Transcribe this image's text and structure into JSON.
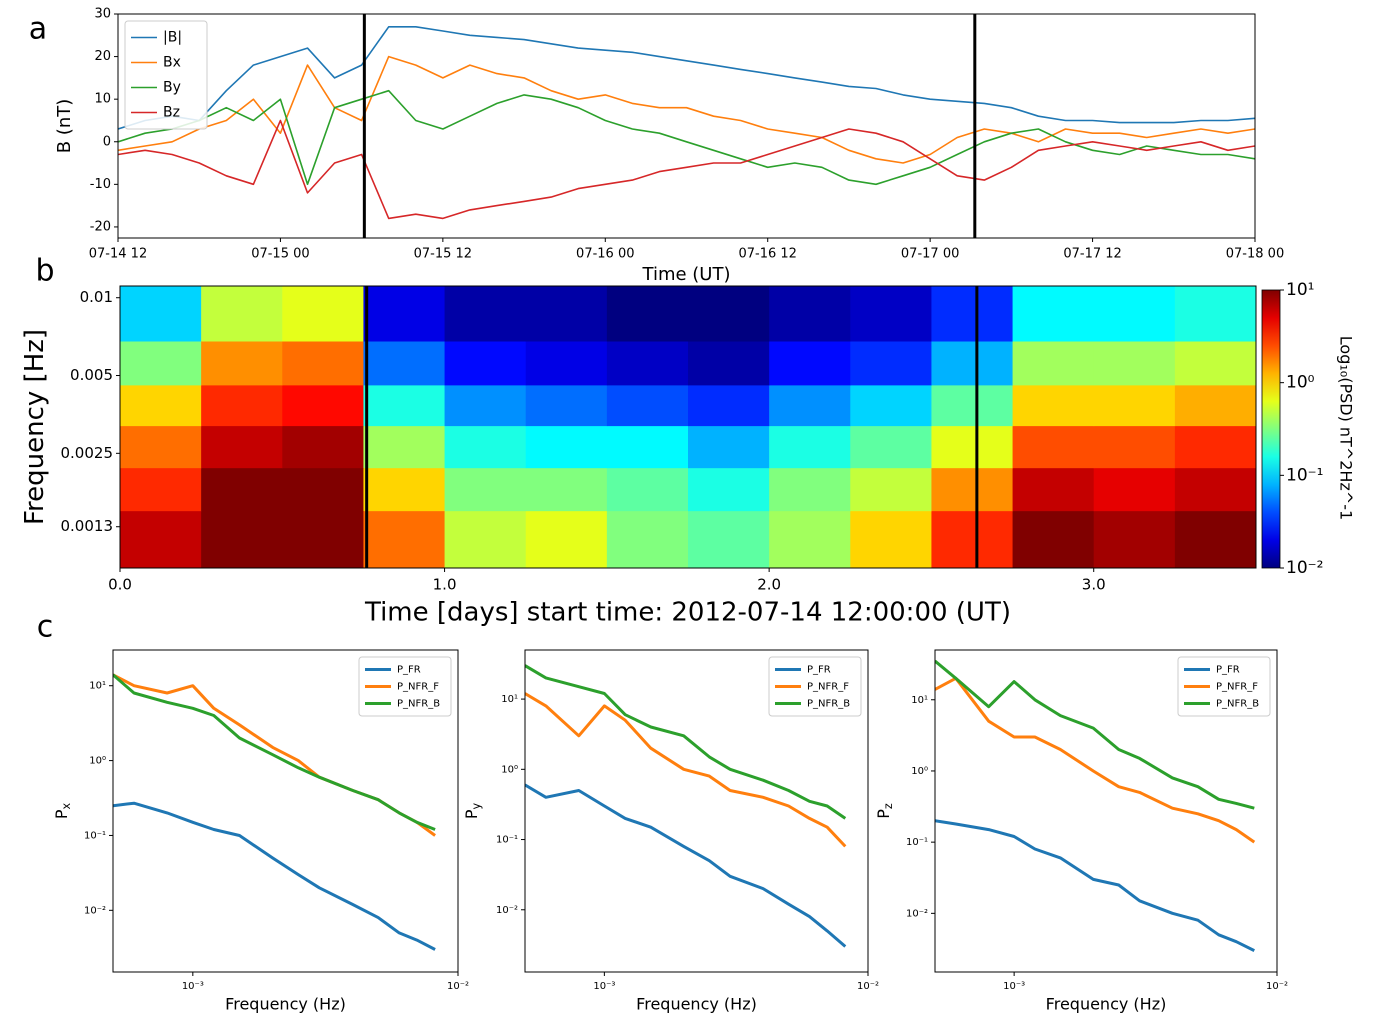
{
  "chart_data": [
    {
      "type": "line",
      "panel_label": "a",
      "xlabel": "Time (UT)",
      "ylabel": "B (nT)",
      "x": [
        0,
        2,
        4,
        6,
        8,
        10,
        12,
        14,
        16,
        18,
        20,
        22,
        24,
        26,
        28,
        30,
        32,
        34,
        36,
        38,
        40,
        42,
        44,
        46,
        48,
        50,
        52,
        54,
        56,
        58,
        60,
        62,
        64,
        66,
        68,
        70,
        72,
        74,
        76,
        78,
        80,
        82,
        84
      ],
      "xlim": [
        0,
        84
      ],
      "xticks": [
        {
          "value": 0,
          "label": "07-14 12"
        },
        {
          "value": 12,
          "label": "07-15 00"
        },
        {
          "value": 24,
          "label": "07-15 12"
        },
        {
          "value": 36,
          "label": "07-16 00"
        },
        {
          "value": 48,
          "label": "07-16 12"
        },
        {
          "value": 60,
          "label": "07-17 00"
        },
        {
          "value": 72,
          "label": "07-17 12"
        },
        {
          "value": 84,
          "label": "07-18 00"
        }
      ],
      "ylim": [
        -22.6,
        30
      ],
      "yticks": [
        -20,
        -10,
        0,
        10,
        20,
        30
      ],
      "vlines": [
        18.2,
        63.3
      ],
      "legend": "upper left",
      "series": [
        {
          "name": "|B|",
          "color": "#1f77b4",
          "values": [
            3,
            5,
            6,
            5,
            12,
            18,
            20,
            22,
            15,
            18,
            27,
            27,
            26,
            25,
            24.5,
            24,
            23,
            22,
            21.5,
            21,
            20,
            19,
            18,
            17,
            16,
            15,
            14,
            13,
            12.5,
            11,
            10,
            9.5,
            9,
            8,
            6,
            5,
            5,
            4.5,
            4.5,
            4.5,
            5,
            5,
            5.5
          ]
        },
        {
          "name": "Bx",
          "color": "#ff7f0e",
          "values": [
            -2,
            -1,
            0,
            3,
            5,
            10,
            2,
            18,
            8,
            5,
            20,
            18,
            15,
            18,
            16,
            15,
            12,
            10,
            11,
            9,
            8,
            8,
            6,
            5,
            3,
            2,
            1,
            -2,
            -4,
            -5,
            -3,
            1,
            3,
            2,
            0,
            3,
            2,
            2,
            1,
            2,
            3,
            2,
            3
          ]
        },
        {
          "name": "By",
          "color": "#2ca02c",
          "values": [
            0,
            2,
            3,
            5,
            8,
            5,
            10,
            -10,
            8,
            10,
            12,
            5,
            3,
            6,
            9,
            11,
            10,
            8,
            5,
            3,
            2,
            0,
            -2,
            -4,
            -6,
            -5,
            -6,
            -9,
            -10,
            -8,
            -6,
            -3,
            0,
            2,
            3,
            0,
            -2,
            -3,
            -1,
            -2,
            -3,
            -3,
            -4
          ]
        },
        {
          "name": "Bz",
          "color": "#d62728",
          "values": [
            -3,
            -2,
            -3,
            -5,
            -8,
            -10,
            5,
            -12,
            -5,
            -3,
            -18,
            -17,
            -18,
            -16,
            -15,
            -14,
            -13,
            -11,
            -10,
            -9,
            -7,
            -6,
            -5,
            -5,
            -3,
            -1,
            1,
            3,
            2,
            0,
            -4,
            -8,
            -9,
            -6,
            -2,
            -1,
            0,
            -1,
            -2,
            -1,
            0,
            -2,
            -1
          ]
        }
      ]
    },
    {
      "type": "heatmap",
      "panel_label": "b",
      "xlabel": "Time [days] start time: 2012-07-14 12:00:00 (UT)",
      "ylabel": "Frequency [Hz]",
      "x_edges": [
        0,
        0.25,
        0.5,
        0.75,
        1,
        1.25,
        1.5,
        1.75,
        2,
        2.25,
        2.5,
        2.75,
        3,
        3.25,
        3.5
      ],
      "y_edges": [
        0.0009,
        0.0015,
        0.0022,
        0.0032,
        0.0046,
        0.0068,
        0.0111
      ],
      "z": [
        [
          6.3,
          10,
          10,
          2,
          0.5,
          0.63,
          0.32,
          0.25,
          0.4,
          1,
          3.2,
          10,
          7.9,
          10
        ],
        [
          3.2,
          10,
          10,
          1,
          0.32,
          0.32,
          0.25,
          0.16,
          0.32,
          0.5,
          1.6,
          6.3,
          5,
          6.3
        ],
        [
          2,
          6.3,
          7.9,
          0.4,
          0.16,
          0.13,
          0.13,
          0.079,
          0.16,
          0.25,
          0.63,
          2.5,
          2.5,
          3.2
        ],
        [
          1,
          3.2,
          4,
          0.16,
          0.063,
          0.05,
          0.04,
          0.032,
          0.063,
          0.1,
          0.25,
          1,
          1,
          1.3
        ],
        [
          0.32,
          1.6,
          2,
          0.05,
          0.025,
          0.02,
          0.016,
          0.013,
          0.025,
          0.032,
          0.079,
          0.4,
          0.4,
          0.5
        ],
        [
          0.1,
          0.5,
          0.63,
          0.02,
          0.013,
          0.013,
          0.01,
          0.01,
          0.013,
          0.016,
          0.032,
          0.13,
          0.13,
          0.16
        ]
      ],
      "xlim": [
        0,
        3.5
      ],
      "xticks": [
        {
          "value": 0,
          "label": "0.0"
        },
        {
          "value": 1,
          "label": "1.0"
        },
        {
          "value": 2,
          "label": "2.0"
        },
        {
          "value": 3,
          "label": "3.0"
        }
      ],
      "ylim": [
        0.0009,
        0.0111
      ],
      "yscale": "log",
      "yticks": [
        0.01,
        0.005,
        0.0025,
        0.0013
      ],
      "vlines": [
        0.76,
        2.64
      ],
      "colormap": "jet",
      "colorbar": {
        "label": "Log₁₀(PSD) nT^2Hz^-1",
        "lim": [
          0.01,
          10
        ],
        "scale": "log",
        "ticks": [
          {
            "value": 10,
            "label": "10¹"
          },
          {
            "value": 1,
            "label": "10⁰"
          },
          {
            "value": 0.1,
            "label": "10⁻¹"
          },
          {
            "value": 0.01,
            "label": "10⁻²"
          }
        ]
      }
    },
    {
      "type": "line",
      "panel_label": "c",
      "xlabel": "Frequency (Hz)",
      "ylabel": "P",
      "ylabel_subscript": "x",
      "xscale": "log",
      "yscale": "log",
      "xlim": [
        0.0005,
        0.01
      ],
      "ylim": [
        0.0015,
        30
      ],
      "legend": "upper right",
      "xticks": [
        {
          "value": 0.001,
          "label": "10⁻³"
        },
        {
          "value": 0.01,
          "label": "10⁻²"
        }
      ],
      "yticks": [
        {
          "value": 0.01,
          "label": "10⁻²"
        },
        {
          "value": 0.1,
          "label": "10⁻¹"
        },
        {
          "value": 1,
          "label": "10⁰"
        },
        {
          "value": 10,
          "label": "10¹"
        }
      ],
      "x": [
        0.0005,
        0.0006,
        0.0008,
        0.001,
        0.0012,
        0.0015,
        0.002,
        0.0025,
        0.003,
        0.004,
        0.005,
        0.006,
        0.007,
        0.0082
      ],
      "series": [
        {
          "name": "P_FR",
          "color": "#1f77b4",
          "values": [
            0.25,
            0.27,
            0.2,
            0.15,
            0.12,
            0.1,
            0.05,
            0.03,
            0.02,
            0.012,
            0.008,
            0.005,
            0.004,
            0.003
          ]
        },
        {
          "name": "P_NFR_F",
          "color": "#ff7f0e",
          "values": [
            14,
            10,
            8,
            10,
            5,
            3,
            1.5,
            1,
            0.6,
            0.4,
            0.3,
            0.2,
            0.15,
            0.1
          ]
        },
        {
          "name": "P_NFR_B",
          "color": "#2ca02c",
          "values": [
            14,
            8,
            6,
            5,
            4,
            2,
            1.2,
            0.8,
            0.6,
            0.4,
            0.3,
            0.2,
            0.15,
            0.12
          ]
        }
      ]
    },
    {
      "type": "line",
      "xlabel": "Frequency (Hz)",
      "ylabel": "P",
      "ylabel_subscript": "y",
      "xscale": "log",
      "yscale": "log",
      "xlim": [
        0.0005,
        0.01
      ],
      "ylim": [
        0.0013,
        50
      ],
      "legend": "upper right",
      "xticks": [
        {
          "value": 0.001,
          "label": "10⁻³"
        },
        {
          "value": 0.01,
          "label": "10⁻²"
        }
      ],
      "yticks": [
        {
          "value": 0.01,
          "label": "10⁻²"
        },
        {
          "value": 0.1,
          "label": "10⁻¹"
        },
        {
          "value": 1,
          "label": "10⁰"
        },
        {
          "value": 10,
          "label": "10¹"
        }
      ],
      "x": [
        0.0005,
        0.0006,
        0.0008,
        0.001,
        0.0012,
        0.0015,
        0.002,
        0.0025,
        0.003,
        0.004,
        0.005,
        0.006,
        0.007,
        0.0082
      ],
      "series": [
        {
          "name": "P_FR",
          "color": "#1f77b4",
          "values": [
            0.6,
            0.4,
            0.5,
            0.3,
            0.2,
            0.15,
            0.08,
            0.05,
            0.03,
            0.02,
            0.012,
            0.008,
            0.005,
            0.003
          ]
        },
        {
          "name": "P_NFR_F",
          "color": "#ff7f0e",
          "values": [
            12,
            8,
            3,
            8,
            5,
            2,
            1,
            0.8,
            0.5,
            0.4,
            0.3,
            0.2,
            0.15,
            0.08
          ]
        },
        {
          "name": "P_NFR_B",
          "color": "#2ca02c",
          "values": [
            30,
            20,
            15,
            12,
            6,
            4,
            3,
            1.5,
            1,
            0.7,
            0.5,
            0.35,
            0.3,
            0.2
          ]
        }
      ]
    },
    {
      "type": "line",
      "xlabel": "Frequency (Hz)",
      "ylabel": "P",
      "ylabel_subscript": "z",
      "xscale": "log",
      "yscale": "log",
      "xlim": [
        0.0005,
        0.01
      ],
      "ylim": [
        0.0015,
        50
      ],
      "legend": "upper right",
      "xticks": [
        {
          "value": 0.001,
          "label": "10⁻³"
        },
        {
          "value": 0.01,
          "label": "10⁻²"
        }
      ],
      "yticks": [
        {
          "value": 0.01,
          "label": "10⁻²"
        },
        {
          "value": 0.1,
          "label": "10⁻¹"
        },
        {
          "value": 1,
          "label": "10⁰"
        },
        {
          "value": 10,
          "label": "10¹"
        }
      ],
      "x": [
        0.0005,
        0.0006,
        0.0008,
        0.001,
        0.0012,
        0.0015,
        0.002,
        0.0025,
        0.003,
        0.004,
        0.005,
        0.006,
        0.007,
        0.0082
      ],
      "series": [
        {
          "name": "P_FR",
          "color": "#1f77b4",
          "values": [
            0.2,
            0.18,
            0.15,
            0.12,
            0.08,
            0.06,
            0.03,
            0.025,
            0.015,
            0.01,
            0.008,
            0.005,
            0.004,
            0.003
          ]
        },
        {
          "name": "P_NFR_F",
          "color": "#ff7f0e",
          "values": [
            14,
            20,
            5,
            3,
            3,
            2,
            1,
            0.6,
            0.5,
            0.3,
            0.25,
            0.2,
            0.15,
            0.1
          ]
        },
        {
          "name": "P_NFR_B",
          "color": "#2ca02c",
          "values": [
            35,
            20,
            8,
            18,
            10,
            6,
            4,
            2,
            1.5,
            0.8,
            0.6,
            0.4,
            0.35,
            0.3
          ]
        }
      ]
    }
  ]
}
